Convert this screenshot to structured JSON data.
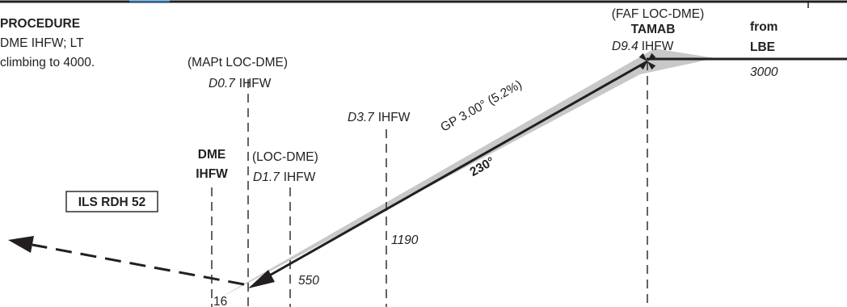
{
  "missed_approach": {
    "title": "PROCEDURE",
    "line1": "DME IHFW; LT",
    "line2": "climbing to 4000."
  },
  "fixes": {
    "mapt": {
      "label": "(MAPt LOC-DME)",
      "dist": "D0.7",
      "ident": "IHFW"
    },
    "dme": {
      "line1": "DME",
      "line2": "IHFW"
    },
    "loc_dme": {
      "label": "(LOC-DME)",
      "dist": "D1.7",
      "ident": "IHFW"
    },
    "d37": {
      "dist": "D3.7",
      "ident": "IHFW",
      "altitude": "1190"
    },
    "faf": {
      "label": "(FAF LOC-DME)",
      "name": "TAMAB",
      "dist": "D9.4",
      "ident": "IHFW"
    },
    "from": {
      "line1": "from",
      "line2": "LBE",
      "altitude": "3000"
    }
  },
  "ils_rdh": "ILS RDH 52",
  "glidepath": {
    "label": "GP 3.00° (5.2%)",
    "course": "230°"
  },
  "altitudes": {
    "loc_dme": "550"
  },
  "runway": "16",
  "colors": {
    "ink": "#231f20",
    "glide_wedge": "#c8c8c8",
    "header_blue": "#2a7ab8"
  }
}
